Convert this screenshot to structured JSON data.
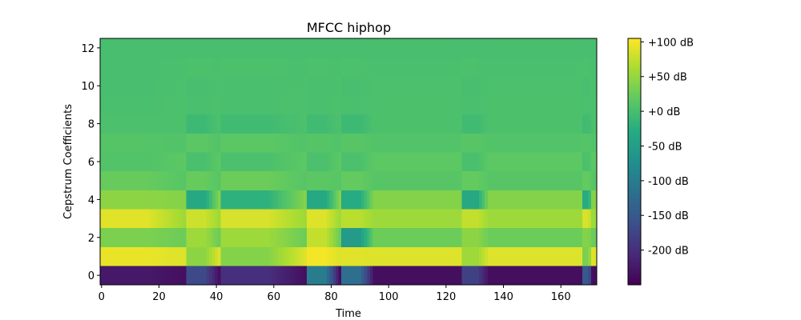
{
  "chart_data": {
    "type": "heatmap",
    "title": "MFCC hiphop",
    "xlabel": "Time",
    "ylabel": "Cepstrum Coefficients",
    "xlim": [
      -0.5,
      172.5
    ],
    "ylim": [
      -0.5,
      12.5
    ],
    "x_ticks": [
      0,
      20,
      40,
      60,
      80,
      100,
      120,
      140,
      160
    ],
    "y_ticks": [
      0,
      2,
      4,
      6,
      8,
      10,
      12
    ],
    "colorbar": {
      "label_format": "%+2.0f dB",
      "range": [
        -250,
        105
      ],
      "ticks": [
        100,
        50,
        0,
        -50,
        -100,
        -150,
        -200
      ],
      "tick_labels": [
        "+100 dB",
        "+50 dB",
        "+0 dB",
        "-50 dB",
        "-100 dB",
        "-150 dB",
        "-200 dB"
      ],
      "colormap": "viridis"
    },
    "frames": 173,
    "coefficients": 13,
    "background_dB": [
      -235,
      88,
      25,
      55,
      40,
      12,
      16,
      8,
      4,
      4,
      3,
      2,
      1
    ],
    "onset_segments": [
      {
        "start": 0,
        "end": 30,
        "dB": [
          -225,
          95,
          35,
          90,
          45,
          22,
          8,
          10,
          3,
          2,
          1,
          1,
          0
        ]
      },
      {
        "start": 30,
        "end": 42,
        "dB": [
          -170,
          45,
          55,
          80,
          -35,
          22,
          2,
          15,
          -8,
          2,
          1,
          4,
          0
        ]
      },
      {
        "start": 42,
        "end": 72,
        "dB": [
          -200,
          40,
          55,
          85,
          -20,
          25,
          3,
          15,
          -5,
          2,
          2,
          4,
          0
        ]
      },
      {
        "start": 72,
        "end": 84,
        "dB": [
          -100,
          100,
          75,
          88,
          -35,
          15,
          3,
          10,
          -5,
          2,
          2,
          3,
          0
        ]
      },
      {
        "start": 84,
        "end": 96,
        "dB": [
          -120,
          90,
          -55,
          70,
          -30,
          20,
          3,
          12,
          -8,
          2,
          1,
          3,
          0
        ]
      },
      {
        "start": 126,
        "end": 136,
        "dB": [
          -180,
          55,
          45,
          75,
          -35,
          20,
          2,
          12,
          -5,
          2,
          1,
          3,
          0
        ]
      },
      {
        "start": 168,
        "end": 172,
        "dB": [
          -150,
          35,
          40,
          85,
          -30,
          20,
          3,
          10,
          -5,
          2,
          1,
          3,
          0
        ]
      }
    ]
  }
}
